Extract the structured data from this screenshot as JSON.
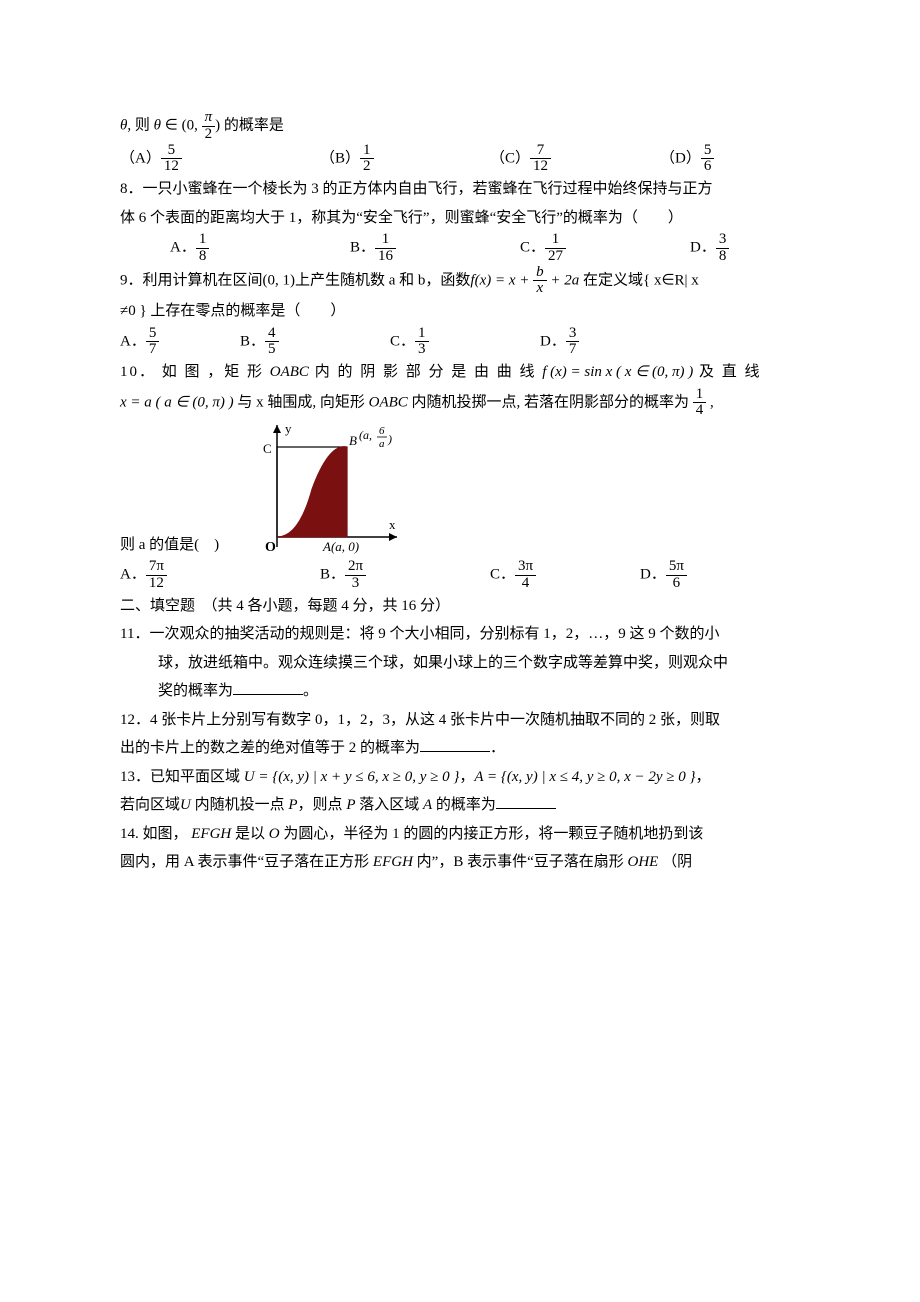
{
  "q7": {
    "stem_prefix": "θ, 则 θ ∈ (0, ",
    "stem_suffix": ") 的概率是",
    "frac_top": "π",
    "frac_bot": "2",
    "opts": {
      "A": {
        "label": "（A）",
        "n": "5",
        "d": "12"
      },
      "B": {
        "label": "（B）",
        "n": "1",
        "d": "2"
      },
      "C": {
        "label": "（C）",
        "n": "7",
        "d": "12"
      },
      "D": {
        "label": "（D）",
        "n": "5",
        "d": "6"
      }
    }
  },
  "q8": {
    "line1": "8．一只小蜜蜂在一个棱长为 3 的正方体内自由飞行，若蜜蜂在飞行过程中始终保持与正方",
    "line2": "体 6 个表面的距离均大于 1，称其为“安全飞行”，则蜜蜂“安全飞行”的概率为（　　）",
    "opts": {
      "A": {
        "label": "A．",
        "n": "1",
        "d": "8"
      },
      "B": {
        "label": "B．",
        "n": "1",
        "d": "16"
      },
      "C": {
        "label": "C．",
        "n": "1",
        "d": "27"
      },
      "D": {
        "label": "D．",
        "n": "3",
        "d": "8"
      }
    }
  },
  "q9": {
    "line1_pre": "9．利用计算机在区间(0, 1)上产生随机数 a 和 b，函数",
    "fx": "f(x) = x + ",
    "frac_n": "b",
    "frac_d": "x",
    "fx_tail": " + 2a",
    "line1_post": "在定义域{ x∈R| x",
    "line2": "≠0 } 上存在零点的概率是（　　）",
    "opts": {
      "A": {
        "label": "A．",
        "n": "5",
        "d": "7"
      },
      "B": {
        "label": "B．",
        "n": "4",
        "d": "5"
      },
      "C": {
        "label": "C．",
        "n": "1",
        "d": "3"
      },
      "D": {
        "label": "D．",
        "n": "3",
        "d": "7"
      }
    }
  },
  "q10": {
    "line1_a": "10． 如 图 ，矩 形 ",
    "oabc1": "OABC",
    "line1_b": " 内 的 阴 影 部 分 是 由 曲 线 ",
    "fx": "f (x) = sin x ( x ∈ (0, π) )",
    "line1_c": " 及 直 线",
    "line2_a": "x = a ( a ∈ (0, π) )",
    "line2_b": " 与 x 轴围成, 向矩形 ",
    "oabc2": "OABC",
    "line2_c": " 内随机投掷一点, 若落在阴影部分的概率为 ",
    "p_n": "1",
    "p_d": "4",
    "line2_d": " ,",
    "line3": "则 a 的值是(　)",
    "fig": {
      "width": 160,
      "height": 140,
      "bg": "#ffffff",
      "axis_color": "#000000",
      "fill_color": "#7a1010",
      "lbl_C": "C",
      "lbl_O": "O",
      "lbl_B": "B",
      "lbl_Bcoord_pre": "(a, ",
      "lbl_Bcoord_n": "6",
      "lbl_Bcoord_d": "a",
      "lbl_Bcoord_post": ")",
      "lbl_A": "A(a, 0)",
      "lbl_x": "x",
      "lbl_y": "y"
    },
    "opts": {
      "A": {
        "label": "A．",
        "n": "7π",
        "d": "12"
      },
      "B": {
        "label": "B．",
        "n": "2π",
        "d": "3"
      },
      "C": {
        "label": "C．",
        "n": "3π",
        "d": "4"
      },
      "D": {
        "label": "D．",
        "n": "5π",
        "d": "6"
      }
    }
  },
  "sec2": "二、填空题　（共 4 各小题，每题 4 分，共 16 分）",
  "q11": {
    "l1": "11．一次观众的抽奖活动的规则是：将 9 个大小相同，分别标有 1，2，…，9 这 9 个数的小",
    "l2": "球，放进纸箱中。观众连续摸三个球，如果小球上的三个数字成等差算中奖，则观众中",
    "l3_a": "奖的概率为",
    "l3_b": "。",
    "blank_w": 70
  },
  "q12": {
    "l1": "12．4 张卡片上分别写有数字 0，1，2，3，从这 4 张卡片中一次随机抽取不同的 2 张，则取",
    "l2_a": "出的卡片上的数之差的绝对值等于 2 的概率为",
    "l2_b": "．",
    "blank_w": 70
  },
  "q13": {
    "l1_a": "13．已知平面区域 ",
    "U": "U = {(x, y) | x + y ≤ 6, x ≥ 0, y ≥ 0 }",
    "l1_b": "，",
    "A": "A = {(x, y) | x ≤ 4, y ≥ 0, x − 2y ≥ 0 }",
    "l1_c": "，",
    "l2_a": "若向区域",
    "Uv": "U",
    "l2_b": " 内随机投一点 ",
    "Pv": "P",
    "l2_c": "，则点 ",
    "l2_d": " 落入区域 ",
    "Av": "A",
    "l2_e": " 的概率为",
    "blank_w": 60
  },
  "q14": {
    "l1_a": "14. 如图， ",
    "EFGH": "EFGH",
    "l1_b": " 是以 ",
    "Ov": "O",
    "l1_c": " 为圆心，半径为 1 的圆的内接正方形，将一颗豆子随机地扔到该",
    "l2_a": "圆内，用 A 表示事件“豆子落在正方形 ",
    "l2_b": " 内”，B 表示事件“豆子落在扇形 ",
    "OHE": "OHE",
    "l2_c": " （阴"
  }
}
